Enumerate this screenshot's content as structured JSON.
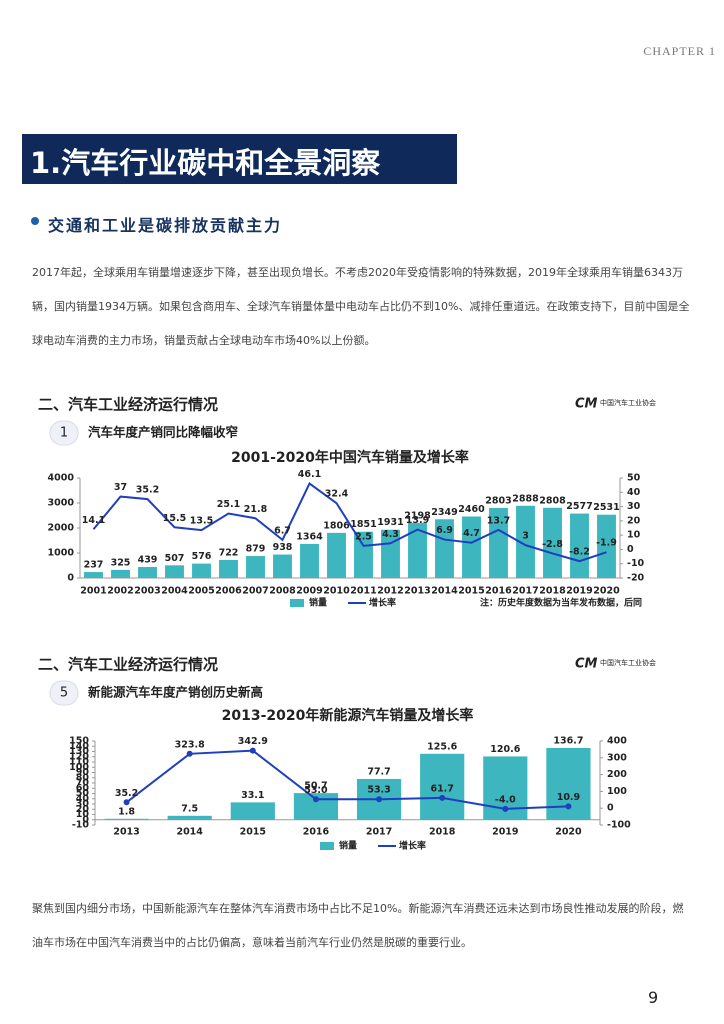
{
  "header": {
    "chapter": "CHAPTER 1"
  },
  "section": {
    "title": "1.汽车行业碳中和全景洞察",
    "subtitle": "交通和工业是碳排放贡献主力",
    "paragraph": "2017年起，全球乘用车销量增速逐步下降，甚至出现负增长。不考虑2020年受疫情影响的特殊数据，2019年全球乘用车销量6343万辆，国内销量1934万辆。如果包含商用车、全球汽车销量体量中电动车占比仍不到10%、减排任重道远。在政策支持下，目前中国是全球电动车消费的主力市场，销量贡献占全球电动车市场40%以上份额。"
  },
  "figures": [
    {
      "heading": "二、汽车工业经济运行情况",
      "number": "1",
      "caption": "汽车年度产销同比降幅收窄",
      "logo": "中国汽车工业协会"
    },
    {
      "heading": "二、汽车工业经济运行情况",
      "number": "5",
      "caption": "新能源汽车年度产销创历史新高",
      "logo": "中国汽车工业协会"
    }
  ],
  "chart_data": [
    {
      "type": "combo",
      "title": "2001-2020年中国汽车销量及增长率",
      "note": "注：历史年度数据为当年发布数据，后同",
      "categories": [
        "2001",
        "2002",
        "2003",
        "2004",
        "2005",
        "2006",
        "2007",
        "2008",
        "2009",
        "2010",
        "2011",
        "2012",
        "2013",
        "2014",
        "2015",
        "2016",
        "2017",
        "2018",
        "2019",
        "2020"
      ],
      "series": [
        {
          "name": "销量",
          "color": "#3db6bf",
          "values": [
            237,
            325,
            439,
            507,
            576,
            722,
            879,
            938,
            1364,
            1806,
            1851,
            1931,
            2198,
            2349,
            2460,
            2803,
            2888,
            2808,
            2577,
            2531
          ]
        },
        {
          "name": "增长率",
          "color": "#1f3fbf",
          "axis": "y2",
          "values": [
            14.1,
            37,
            35.2,
            15.5,
            13.5,
            25.1,
            21.8,
            6.7,
            46.1,
            32.4,
            2.5,
            4.3,
            13.9,
            6.9,
            4.7,
            13.7,
            3,
            -2.8,
            -8.2,
            -1.9
          ]
        }
      ],
      "ylim": [
        0,
        4000
      ],
      "yticks": [
        0,
        1000,
        2000,
        3000,
        4000
      ],
      "y2lim": [
        -20,
        50
      ],
      "y2ticks": [
        -20,
        -10,
        0,
        10,
        20,
        30,
        40,
        50
      ]
    },
    {
      "type": "combo",
      "title": "2013-2020年新能源汽车销量及增长率",
      "categories": [
        "2013",
        "2014",
        "2015",
        "2016",
        "2017",
        "2018",
        "2019",
        "2020"
      ],
      "series": [
        {
          "name": "销量",
          "color": "#3db6bf",
          "values": [
            1.8,
            7.5,
            33.1,
            50.7,
            77.7,
            125.6,
            120.6,
            136.7
          ]
        },
        {
          "name": "增长率",
          "color": "#1f3fbf",
          "axis": "y2",
          "markers": true,
          "values": [
            35.2,
            323.8,
            342.9,
            53,
            53.3,
            61.7,
            -4,
            10.9
          ],
          "value_labels": [
            "35.2",
            "323.8",
            "342.9",
            "53.0",
            "53.3",
            "61.7",
            "-4.0",
            "10.9"
          ]
        }
      ],
      "ylim": [
        -10,
        150
      ],
      "yticks": [
        -10,
        0,
        10,
        20,
        30,
        40,
        50,
        60,
        70,
        80,
        90,
        100,
        110,
        120,
        130,
        140,
        150
      ],
      "y2lim": [
        -100,
        400
      ],
      "y2ticks": [
        -100,
        0,
        100,
        200,
        300,
        400
      ]
    }
  ],
  "footer": {
    "paragraph": "聚焦到国内细分市场，中国新能源汽车在整体汽车消费市场中占比不足10%。新能源汽车消费还远未达到市场良性推动发展的阶段，燃油车市场在中国汽车消费当中的占比仍偏高，意味着当前汽车行业仍然是脱碳的重要行业。",
    "page": "9"
  }
}
